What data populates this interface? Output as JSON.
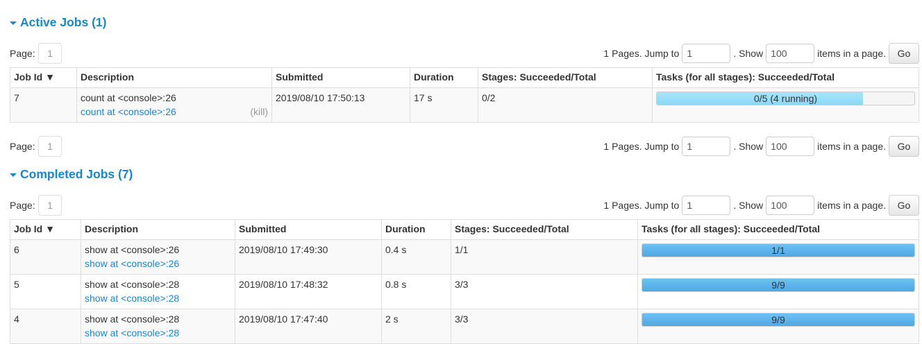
{
  "active": {
    "title": "Active Jobs (1)",
    "pager": {
      "page_label": "Page:",
      "page": "1",
      "pages_text": "1 Pages. Jump to",
      "jump_value": "1",
      "show_text": ". Show",
      "show_value": "100",
      "items_text": "items in a page.",
      "go": "Go"
    },
    "headers": [
      "Job Id ▼",
      "Description",
      "Submitted",
      "Duration",
      "Stages: Succeeded/Total",
      "Tasks (for all stages): Succeeded/Total"
    ],
    "rows": [
      {
        "id": "7",
        "desc": "count at <console>:26",
        "link": "count at <console>:26",
        "kill": "(kill)",
        "submitted": "2019/08/10 17:50:13",
        "duration": "17 s",
        "stages": "0/2",
        "tasks": "0/5 (4 running)",
        "running_fraction": 0.8
      }
    ]
  },
  "completed": {
    "title": "Completed Jobs (7)",
    "pager": {
      "page_label": "Page:",
      "page": "1",
      "pages_text": "1 Pages. Jump to",
      "jump_value": "1",
      "show_text": ". Show",
      "show_value": "100",
      "items_text": "items in a page.",
      "go": "Go"
    },
    "headers": [
      "Job Id ▼",
      "Description",
      "Submitted",
      "Duration",
      "Stages: Succeeded/Total",
      "Tasks (for all stages): Succeeded/Total"
    ],
    "rows": [
      {
        "id": "6",
        "desc": "show at <console>:26",
        "link": "show at <console>:26",
        "submitted": "2019/08/10 17:49:30",
        "duration": "0.4 s",
        "stages": "1/1",
        "tasks": "1/1"
      },
      {
        "id": "5",
        "desc": "show at <console>:28",
        "link": "show at <console>:28",
        "submitted": "2019/08/10 17:48:32",
        "duration": "0.8 s",
        "stages": "3/3",
        "tasks": "9/9"
      },
      {
        "id": "4",
        "desc": "show at <console>:28",
        "link": "show at <console>:28",
        "submitted": "2019/08/10 17:47:40",
        "duration": "2 s",
        "stages": "3/3",
        "tasks": "9/9"
      }
    ]
  },
  "colors": {
    "link": "#1a85c8",
    "running_bar": "#a6e5fb",
    "completed_bar": "#4ea9e6"
  }
}
